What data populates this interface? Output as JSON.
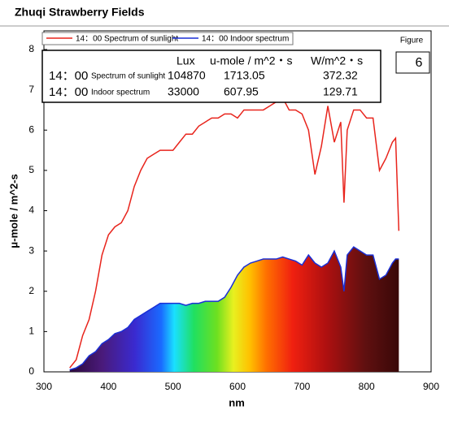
{
  "chart_data": {
    "type": "spectrum",
    "title": "Zhuqi Strawberry Fields",
    "x_label": "nm",
    "y_label": "μ-mole / m^2-s",
    "figure_label": "Figure",
    "figure_number": "6",
    "xlim": [
      300,
      900
    ],
    "xticks": [
      300,
      400,
      500,
      600,
      700,
      800,
      900
    ],
    "ylim": [
      0,
      8
    ],
    "yticks": [
      0,
      1,
      2,
      3,
      4,
      5,
      6,
      7,
      8
    ],
    "x": [
      340,
      350,
      360,
      370,
      380,
      390,
      400,
      410,
      420,
      430,
      440,
      450,
      460,
      470,
      480,
      490,
      500,
      510,
      520,
      530,
      540,
      550,
      560,
      570,
      580,
      590,
      600,
      610,
      620,
      630,
      640,
      650,
      660,
      670,
      680,
      690,
      700,
      710,
      720,
      730,
      740,
      750,
      760,
      765,
      770,
      780,
      790,
      800,
      810,
      820,
      830,
      840,
      845,
      850
    ],
    "series": [
      {
        "name": "14：00 Spectrum of sunlight",
        "color": "#e8241c",
        "values": [
          0.1,
          0.3,
          0.9,
          1.3,
          2.0,
          2.9,
          3.4,
          3.6,
          3.7,
          4.0,
          4.6,
          5.0,
          5.3,
          5.4,
          5.5,
          5.5,
          5.5,
          5.7,
          5.9,
          5.9,
          6.1,
          6.2,
          6.3,
          6.3,
          6.4,
          6.4,
          6.3,
          6.5,
          6.5,
          6.5,
          6.5,
          6.6,
          6.7,
          6.8,
          6.5,
          6.5,
          6.4,
          6.0,
          4.9,
          5.6,
          6.6,
          5.7,
          6.2,
          4.2,
          6.0,
          6.5,
          6.5,
          6.3,
          6.3,
          5.0,
          5.3,
          5.7,
          5.8,
          3.5
        ]
      },
      {
        "name": "14：00 Indoor spectrum",
        "color": "#1a2fd6",
        "fill": "spectrum",
        "values": [
          0.05,
          0.1,
          0.2,
          0.4,
          0.5,
          0.7,
          0.8,
          0.95,
          1.0,
          1.1,
          1.3,
          1.4,
          1.5,
          1.6,
          1.7,
          1.7,
          1.7,
          1.7,
          1.65,
          1.7,
          1.7,
          1.75,
          1.75,
          1.75,
          1.85,
          2.1,
          2.4,
          2.6,
          2.7,
          2.75,
          2.8,
          2.8,
          2.8,
          2.85,
          2.8,
          2.75,
          2.65,
          2.9,
          2.7,
          2.6,
          2.7,
          3.0,
          2.6,
          2.0,
          2.9,
          3.1,
          3.0,
          2.9,
          2.9,
          2.3,
          2.4,
          2.7,
          2.8,
          2.8
        ]
      }
    ],
    "table": {
      "header": [
        "Lux",
        "u-mole / m^2・s",
        "W/m^2・s"
      ],
      "rows": [
        [
          "14：00",
          "Spectrum of sunlight",
          104870,
          1713.05,
          372.32
        ],
        [
          "14：00",
          "Indoor spectrum",
          33000,
          607.95,
          129.71
        ]
      ]
    }
  }
}
